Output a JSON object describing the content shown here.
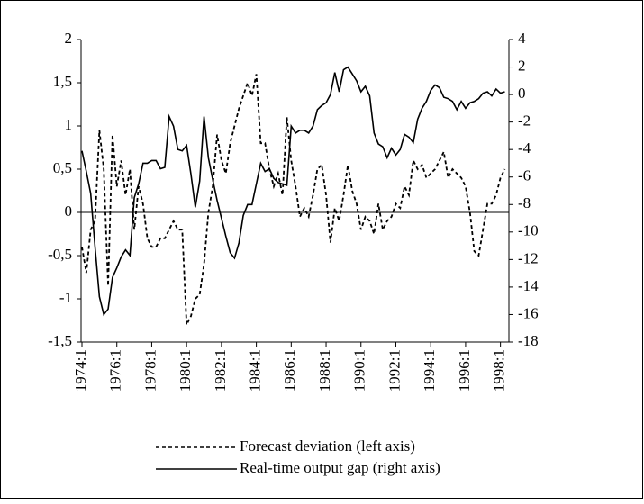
{
  "chart_data": {
    "type": "line",
    "categories": [
      "1974:1",
      null,
      null,
      null,
      null,
      null,
      null,
      null,
      "1976:1",
      null,
      null,
      null,
      null,
      null,
      null,
      null,
      "1978:1",
      null,
      null,
      null,
      null,
      null,
      null,
      null,
      "1980:1",
      null,
      null,
      null,
      null,
      null,
      null,
      null,
      "1982:1",
      null,
      null,
      null,
      null,
      null,
      null,
      null,
      "1984:1",
      null,
      null,
      null,
      null,
      null,
      null,
      null,
      "1986:1",
      null,
      null,
      null,
      null,
      null,
      null,
      null,
      "1988:1",
      null,
      null,
      null,
      null,
      null,
      null,
      null,
      "1990:1",
      null,
      null,
      null,
      null,
      null,
      null,
      null,
      "1992:1",
      null,
      null,
      null,
      null,
      null,
      null,
      null,
      "1994:1",
      null,
      null,
      null,
      null,
      null,
      null,
      null,
      "1996:1",
      null,
      null,
      null,
      null,
      null,
      null,
      null,
      "1998:1",
      null
    ],
    "series": [
      {
        "name": "Forecast deviation (left axis)",
        "color": "#000000",
        "line_style": "dashed",
        "values": [
          -0.4,
          -0.7,
          -0.2,
          -0.1,
          0.95,
          0.5,
          -0.85,
          0.9,
          0.3,
          0.6,
          0.2,
          0.5,
          -0.2,
          0.3,
          0.1,
          -0.3,
          -0.4,
          -0.4,
          -0.3,
          -0.3,
          -0.2,
          -0.1,
          -0.2,
          -0.2,
          -1.3,
          -1.2,
          -1.0,
          -0.95,
          -0.6,
          0.0,
          0.3,
          0.9,
          0.6,
          0.45,
          0.8,
          1.0,
          1.2,
          1.35,
          1.5,
          1.35,
          1.6,
          0.8,
          0.8,
          0.5,
          0.3,
          0.45,
          0.2,
          1.1,
          0.6,
          0.3,
          -0.05,
          0.05,
          -0.05,
          0.2,
          0.5,
          0.55,
          0.2,
          -0.35,
          0.05,
          -0.1,
          0.2,
          0.55,
          0.25,
          0.1,
          -0.2,
          -0.05,
          -0.1,
          -0.25,
          0.1,
          -0.2,
          -0.1,
          -0.05,
          0.1,
          0.05,
          0.3,
          0.2,
          0.6,
          0.5,
          0.55,
          0.4,
          0.45,
          0.5,
          0.6,
          0.7,
          0.4,
          0.5,
          0.45,
          0.4,
          0.3,
          0.0,
          -0.45,
          -0.5,
          -0.2,
          0.1,
          0.1,
          0.2,
          0.4,
          0.5
        ]
      },
      {
        "name": "Real-time output gap (right axis)",
        "color": "#000000",
        "line_style": "solid",
        "axis": "y2",
        "values": [
          -4.1,
          -5.6,
          -7.2,
          -11.1,
          -14.7,
          -16.0,
          -15.6,
          -13.3,
          -12.6,
          -11.8,
          -11.3,
          -11.7,
          -7.5,
          -6.5,
          -5.0,
          -5.0,
          -4.8,
          -4.8,
          -5.4,
          -5.3,
          -1.6,
          -2.3,
          -4.0,
          -4.1,
          -3.7,
          -5.8,
          -8.2,
          -6.3,
          -1.6,
          -4.6,
          -6.2,
          -7.7,
          -9.0,
          -10.3,
          -11.5,
          -11.9,
          -10.8,
          -8.8,
          -8.0,
          -8.0,
          -6.5,
          -5.0,
          -5.6,
          -5.4,
          -6.1,
          -6.4,
          -6.5,
          -6.6,
          -2.3,
          -2.8,
          -2.6,
          -2.6,
          -2.8,
          -2.3,
          -1.1,
          -0.8,
          -0.6,
          0.0,
          1.6,
          0.2,
          1.8,
          2.0,
          1.5,
          1.0,
          0.2,
          0.6,
          -0.1,
          -2.8,
          -3.6,
          -3.8,
          -4.6,
          -3.9,
          -4.4,
          -4.0,
          -2.9,
          -3.1,
          -3.5,
          -1.8,
          -1.0,
          -0.5,
          0.3,
          0.7,
          0.5,
          -0.2,
          -0.3,
          -0.5,
          -1.1,
          -0.5,
          -1.0,
          -0.6,
          -0.5,
          -0.3,
          0.1,
          0.2,
          -0.1,
          0.4,
          0.1,
          0.2
        ]
      }
    ],
    "ylim": [
      -1.5,
      2
    ],
    "yticks": [
      {
        "value": -1.5,
        "label": "-1,5"
      },
      -1,
      {
        "value": -0.5,
        "label": "-0,5"
      },
      0,
      {
        "value": 0.5,
        "label": "0,5"
      },
      1,
      {
        "value": 1.5,
        "label": "1,5"
      },
      2
    ],
    "y2lim": [
      -18,
      4
    ],
    "y2ticks": [
      -18,
      -16,
      -14,
      -12,
      -10,
      -8,
      -6,
      -4,
      -2,
      0,
      2,
      4
    ],
    "zero_line": true,
    "legend": "bottom"
  }
}
